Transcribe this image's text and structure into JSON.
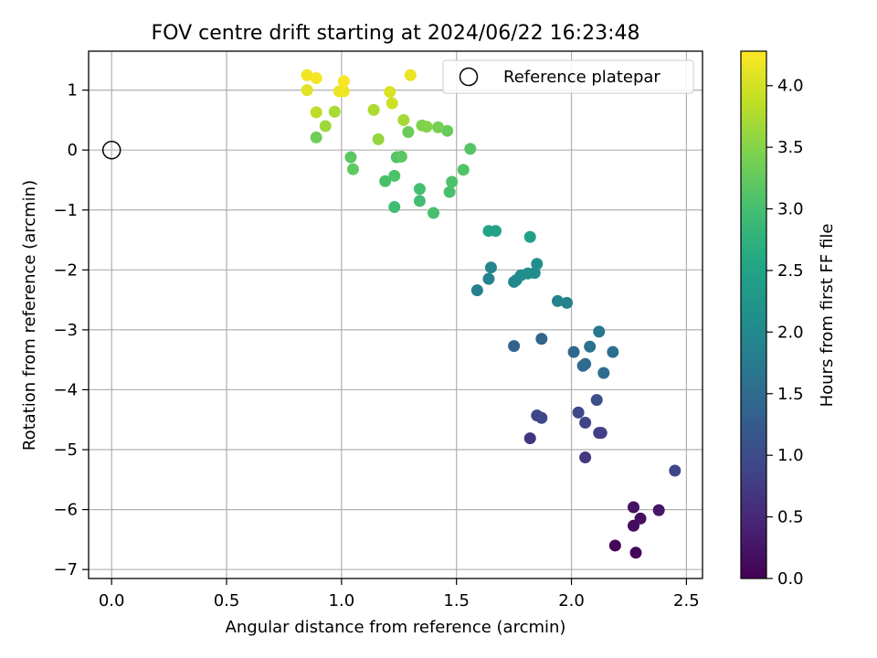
{
  "chart_data": {
    "type": "scatter",
    "title": "FOV centre drift starting at 2024/06/22 16:23:48",
    "xlabel": "Angular distance from reference (arcmin)",
    "ylabel": "Rotation from reference (arcmin)",
    "xlim": [
      -0.1,
      2.57
    ],
    "ylim": [
      -7.15,
      1.65
    ],
    "xticks": [
      0.0,
      0.5,
      1.0,
      1.5,
      2.0,
      2.5
    ],
    "xtick_labels": [
      "0.0",
      "0.5",
      "1.0",
      "1.5",
      "2.0",
      "2.5"
    ],
    "yticks": [
      1,
      0,
      -1,
      -2,
      -3,
      -4,
      -5,
      -6,
      -7
    ],
    "ytick_labels": [
      "1",
      "0",
      "−1",
      "−2",
      "−3",
      "−4",
      "−5",
      "−6",
      "−7"
    ],
    "grid": true,
    "legend": {
      "label": "Reference platepar",
      "position": "top-right"
    },
    "reference_point": {
      "x": 0.0,
      "y": 0.0
    },
    "colorbar": {
      "label": "Hours from first FF file",
      "colormap": "viridis",
      "range": [
        0.0,
        4.28
      ],
      "ticks": [
        0.0,
        0.5,
        1.0,
        1.5,
        2.0,
        2.5,
        3.0,
        3.5,
        4.0
      ],
      "tick_labels": [
        "0.0",
        "0.5",
        "1.0",
        "1.5",
        "2.0",
        "2.5",
        "3.0",
        "3.5",
        "4.0"
      ]
    },
    "point_fields": [
      "x",
      "y",
      "hours"
    ],
    "points": [
      [
        2.19,
        -6.6,
        0.05
      ],
      [
        2.28,
        -6.72,
        0.08
      ],
      [
        2.27,
        -6.27,
        0.12
      ],
      [
        2.3,
        -6.15,
        0.18
      ],
      [
        2.27,
        -5.96,
        0.22
      ],
      [
        2.38,
        -6.01,
        0.26
      ],
      [
        1.82,
        -4.81,
        0.65
      ],
      [
        2.06,
        -5.13,
        0.7
      ],
      [
        2.12,
        -4.72,
        0.75
      ],
      [
        2.45,
        -5.35,
        0.9
      ],
      [
        2.06,
        -4.55,
        0.85
      ],
      [
        2.03,
        -4.38,
        0.95
      ],
      [
        2.11,
        -4.17,
        1.05
      ],
      [
        2.13,
        -4.72,
        0.8
      ],
      [
        1.85,
        -4.43,
        0.88
      ],
      [
        1.87,
        -4.47,
        0.92
      ],
      [
        1.75,
        -3.27,
        1.35
      ],
      [
        1.87,
        -3.15,
        1.4
      ],
      [
        2.01,
        -3.37,
        1.45
      ],
      [
        2.05,
        -3.6,
        1.5
      ],
      [
        2.06,
        -3.57,
        1.52
      ],
      [
        2.08,
        -3.28,
        1.6
      ],
      [
        2.12,
        -3.03,
        1.68
      ],
      [
        2.14,
        -3.72,
        1.55
      ],
      [
        2.18,
        -3.37,
        1.58
      ],
      [
        1.59,
        -2.34,
        1.85
      ],
      [
        1.64,
        -2.15,
        1.9
      ],
      [
        1.65,
        -1.96,
        1.95
      ],
      [
        1.75,
        -2.2,
        1.98
      ],
      [
        1.76,
        -2.17,
        2.0
      ],
      [
        1.78,
        -2.09,
        2.05
      ],
      [
        1.81,
        -2.06,
        2.08
      ],
      [
        1.84,
        -2.05,
        2.1
      ],
      [
        1.85,
        -1.9,
        2.12
      ],
      [
        1.94,
        -2.52,
        1.9
      ],
      [
        1.98,
        -2.55,
        1.88
      ],
      [
        1.64,
        -1.35,
        2.5
      ],
      [
        1.67,
        -1.35,
        2.45
      ],
      [
        1.82,
        -1.45,
        2.45
      ],
      [
        1.23,
        -0.95,
        2.95
      ],
      [
        1.34,
        -0.85,
        2.98
      ],
      [
        1.4,
        -1.05,
        3.02
      ],
      [
        1.34,
        -0.65,
        3.0
      ],
      [
        1.47,
        -0.7,
        3.05
      ],
      [
        1.48,
        -0.53,
        3.08
      ],
      [
        1.53,
        -0.33,
        3.1
      ],
      [
        1.56,
        0.02,
        3.15
      ],
      [
        1.19,
        -0.52,
        3.05
      ],
      [
        1.23,
        -0.43,
        3.08
      ],
      [
        1.24,
        -0.12,
        3.12
      ],
      [
        1.26,
        -0.11,
        3.18
      ],
      [
        1.04,
        -0.12,
        3.2
      ],
      [
        1.05,
        -0.32,
        3.22
      ],
      [
        1.29,
        0.3,
        3.3
      ],
      [
        1.46,
        0.32,
        3.28
      ],
      [
        1.42,
        0.38,
        3.4
      ],
      [
        1.35,
        0.41,
        3.45
      ],
      [
        1.37,
        0.39,
        3.48
      ],
      [
        0.89,
        0.21,
        3.35
      ],
      [
        1.16,
        0.18,
        3.6
      ],
      [
        0.93,
        0.4,
        3.65
      ],
      [
        0.97,
        0.64,
        3.72
      ],
      [
        1.14,
        0.67,
        3.75
      ],
      [
        1.27,
        0.5,
        3.7
      ],
      [
        0.89,
        0.63,
        3.85
      ],
      [
        1.22,
        0.78,
        3.95
      ],
      [
        1.21,
        0.97,
        4.05
      ],
      [
        1.3,
        1.25,
        4.15
      ],
      [
        0.85,
        1.0,
        4.1
      ],
      [
        0.85,
        1.25,
        4.2
      ],
      [
        0.89,
        1.2,
        4.22
      ],
      [
        0.99,
        0.98,
        4.15
      ],
      [
        1.01,
        0.98,
        4.18
      ],
      [
        1.01,
        1.15,
        4.25
      ]
    ]
  }
}
